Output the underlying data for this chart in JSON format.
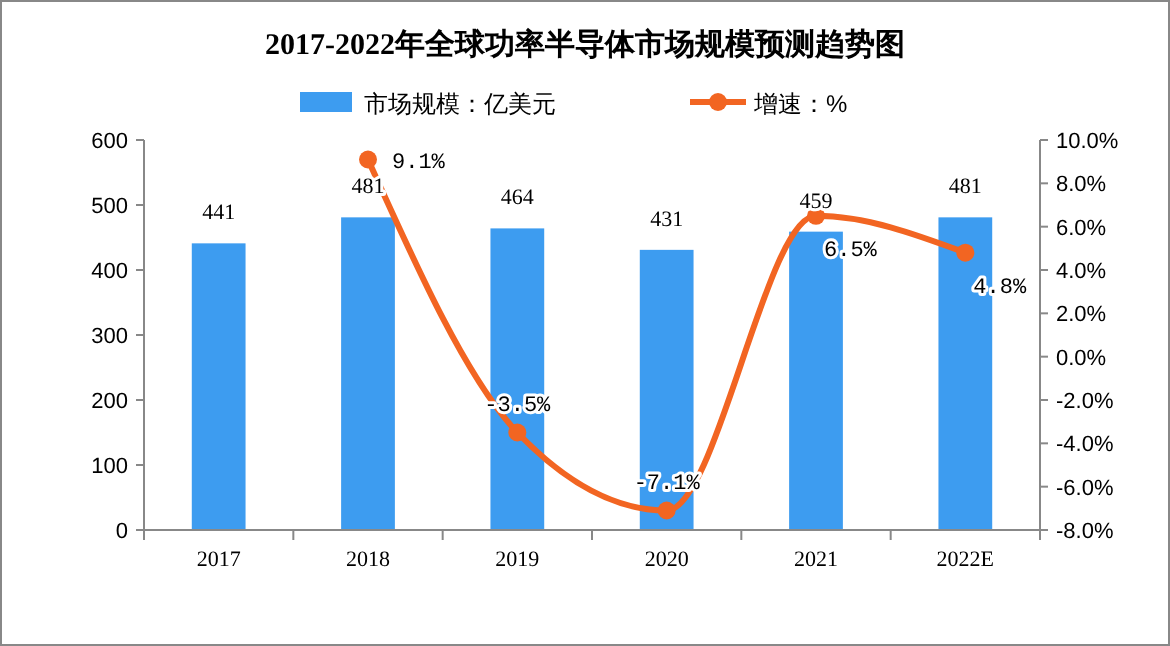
{
  "chart_data": {
    "type": "bar",
    "title": "2017-2022年全球功率半导体市场规模预测趋势图",
    "categories": [
      "2017",
      "2018",
      "2019",
      "2020",
      "2021",
      "2022E"
    ],
    "series": [
      {
        "name": "市场规模：亿美元",
        "color": "#3d9cf0",
        "values": [
          441,
          481,
          464,
          431,
          459,
          481
        ],
        "value_labels": [
          "441",
          "481",
          "464",
          "431",
          "459",
          "481"
        ]
      },
      {
        "name": "增速：%",
        "type": "line",
        "axis": "y2",
        "color": "#f26522",
        "marker": "circle",
        "values": [
          null,
          9.1,
          -3.5,
          -7.1,
          6.5,
          4.8
        ],
        "value_labels": [
          null,
          "9.1%",
          "-3.5%",
          "-7.1%",
          "6.5%",
          "4.8%"
        ]
      }
    ],
    "ylim": [
      0,
      600
    ],
    "yticks": [
      0,
      100,
      200,
      300,
      400,
      500,
      600
    ],
    "y2lim": [
      -8,
      10
    ],
    "y2ticks": [
      {
        "value": -8,
        "label": "-8.0%"
      },
      {
        "value": -6,
        "label": "-6.0%"
      },
      {
        "value": -4,
        "label": "-4.0%"
      },
      {
        "value": -2,
        "label": "-2.0%"
      },
      {
        "value": 0,
        "label": "0.0%"
      },
      {
        "value": 2,
        "label": "2.0%"
      },
      {
        "value": 4,
        "label": "4.0%"
      },
      {
        "value": 6,
        "label": "6.0%"
      },
      {
        "value": 8,
        "label": "8.0%"
      },
      {
        "value": 10,
        "label": "10.0%"
      }
    ],
    "legend": "top",
    "grid": false
  }
}
